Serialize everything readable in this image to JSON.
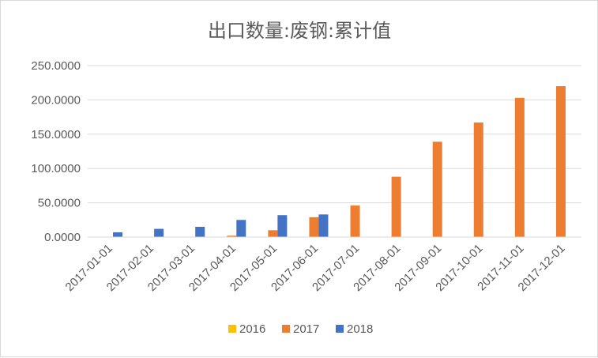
{
  "chart_data": {
    "type": "bar",
    "title": "出口数量:废钢:累计值",
    "categories": [
      "2017-01-01",
      "2017-02-01",
      "2017-03-01",
      "2017-04-01",
      "2017-05-01",
      "2017-06-01",
      "2017-07-01",
      "2017-08-01",
      "2017-09-01",
      "2017-10-01",
      "2017-11-01",
      "2017-12-01"
    ],
    "series": [
      {
        "name": "2016",
        "color": "#FFC000",
        "values": [
          0,
          0,
          0,
          0,
          0,
          0,
          0,
          0,
          0,
          0,
          0,
          0
        ]
      },
      {
        "name": "2017",
        "color": "#ED7D31",
        "values": [
          0,
          0,
          0,
          2,
          10,
          29,
          46,
          88,
          139,
          167,
          203,
          220
        ]
      },
      {
        "name": "2018",
        "color": "#4472C4",
        "values": [
          7,
          12,
          15,
          25,
          32,
          33,
          0,
          0,
          0,
          0,
          0,
          0
        ]
      }
    ],
    "ylim": [
      0,
      250
    ],
    "yticks": [
      0,
      50,
      100,
      150,
      200,
      250
    ],
    "yticklabels": [
      "0.0000",
      "50.0000",
      "100.0000",
      "150.0000",
      "200.0000",
      "250.0000"
    ],
    "xlabel": "",
    "ylabel": "",
    "grid": true,
    "legend": "bottom"
  }
}
